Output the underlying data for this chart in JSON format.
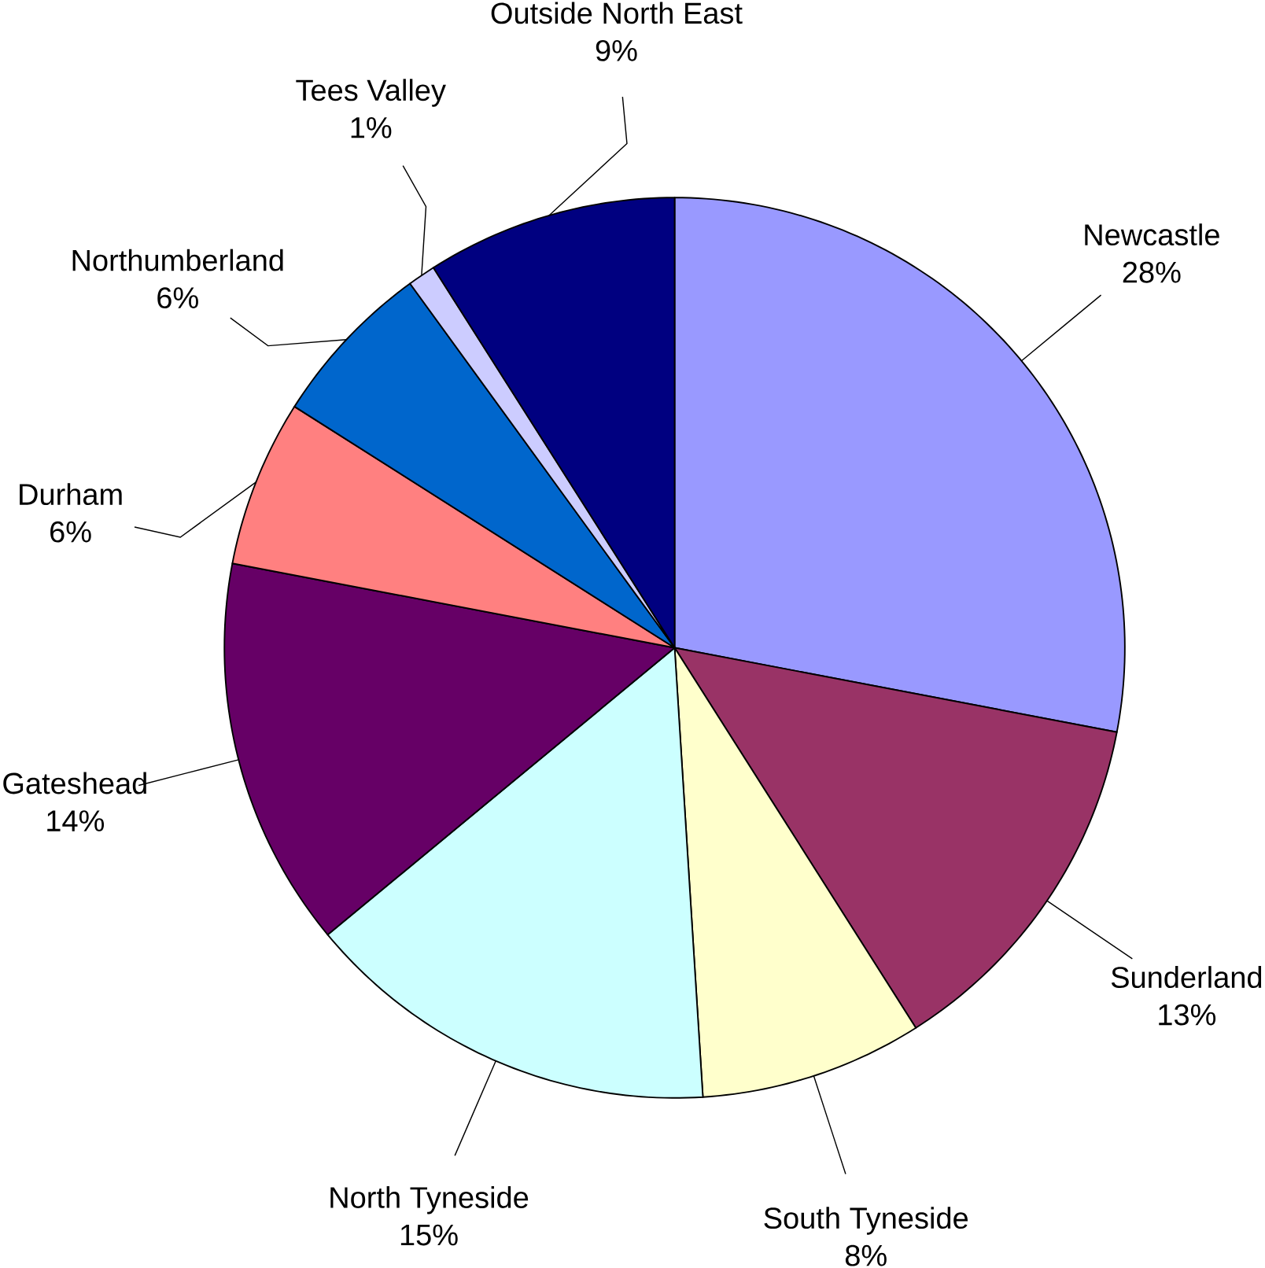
{
  "chart_data": {
    "type": "pie",
    "categories": [
      "Newcastle",
      "Sunderland",
      "South Tyneside",
      "North Tyneside",
      "Gateshead",
      "Durham",
      "Northumberland",
      "Tees Valley",
      "Outside North East"
    ],
    "values": [
      28,
      13,
      8,
      15,
      14,
      6,
      6,
      1,
      9
    ],
    "colors": [
      "#9999ff",
      "#993366",
      "#ffffcc",
      "#ccffff",
      "#660066",
      "#ff8080",
      "#0066cc",
      "#ccccff",
      "#000080"
    ],
    "value_labels": [
      "28%",
      "13%",
      "8%",
      "15%",
      "14%",
      "6%",
      "6%",
      "1%",
      "9%"
    ]
  }
}
